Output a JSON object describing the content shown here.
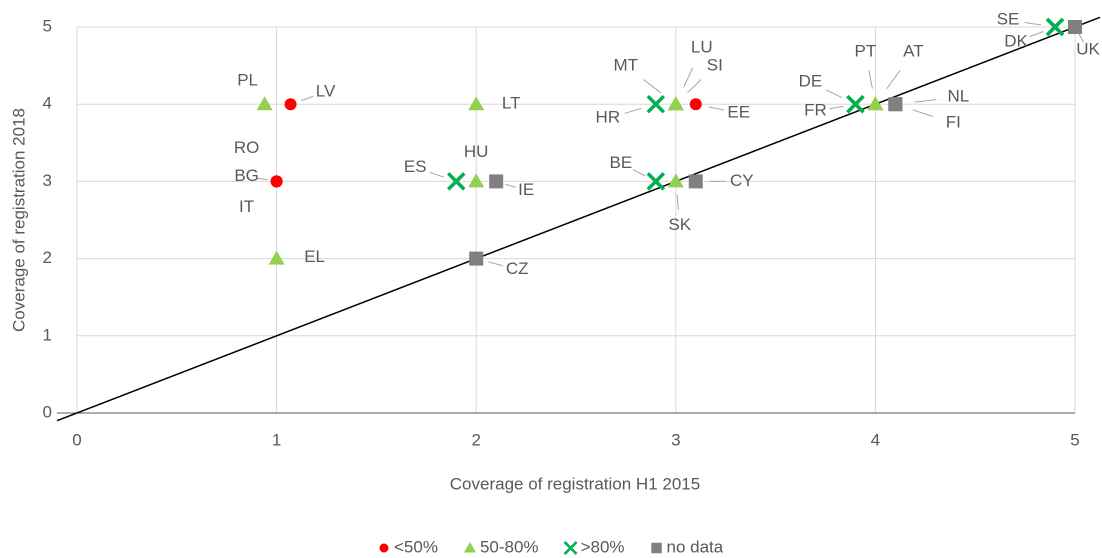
{
  "chart_data": {
    "type": "scatter",
    "x_label": "Coverage of registration H1 2015",
    "y_label": "Coverage of registration 2018",
    "xlim": [
      0,
      5
    ],
    "ylim": [
      0,
      5
    ],
    "xticks": [
      0,
      1,
      2,
      3,
      4,
      5
    ],
    "yticks": [
      0,
      1,
      2,
      3,
      4,
      5
    ],
    "grid": true,
    "legend": "bottom",
    "diagonal": true,
    "series": [
      {
        "name": "<50%",
        "color": "#ff0000",
        "marker": "circle",
        "x": [
          1.07,
          3.1,
          1,
          1,
          1
        ],
        "values": [
          4,
          4,
          3,
          3,
          3
        ],
        "labels": [
          "LV",
          "EE",
          "RO",
          "BG",
          "IT"
        ]
      },
      {
        "name": "50-80%",
        "color": "#92d050",
        "marker": "triangle",
        "x": [
          0.94,
          2,
          1,
          2,
          3,
          3,
          3,
          3,
          4,
          4
        ],
        "values": [
          4,
          4,
          2,
          3,
          4,
          4,
          4,
          3,
          4,
          4
        ],
        "labels": [
          "PL",
          "LT",
          "EL",
          "HU",
          "MT",
          "LU",
          "SI",
          "SK",
          "PT",
          "AT"
        ]
      },
      {
        "name": ">80%",
        "color": "#00b050",
        "marker": "x",
        "x": [
          1.9,
          2.9,
          2.9,
          3.9,
          3.9,
          4.9,
          4.9
        ],
        "values": [
          3,
          4,
          3,
          4,
          4,
          5,
          5
        ],
        "labels": [
          "ES",
          "HR",
          "BE",
          "DE",
          "FR",
          "SE",
          "DK"
        ]
      },
      {
        "name": "no data",
        "color": "#808080",
        "marker": "square",
        "x": [
          2.1,
          2,
          3.1,
          4.1,
          4.1,
          5
        ],
        "values": [
          3,
          2,
          3,
          4,
          4,
          5
        ],
        "labels": [
          "IE",
          "CZ",
          "CY",
          "NL",
          "FI",
          "UK"
        ]
      }
    ]
  }
}
